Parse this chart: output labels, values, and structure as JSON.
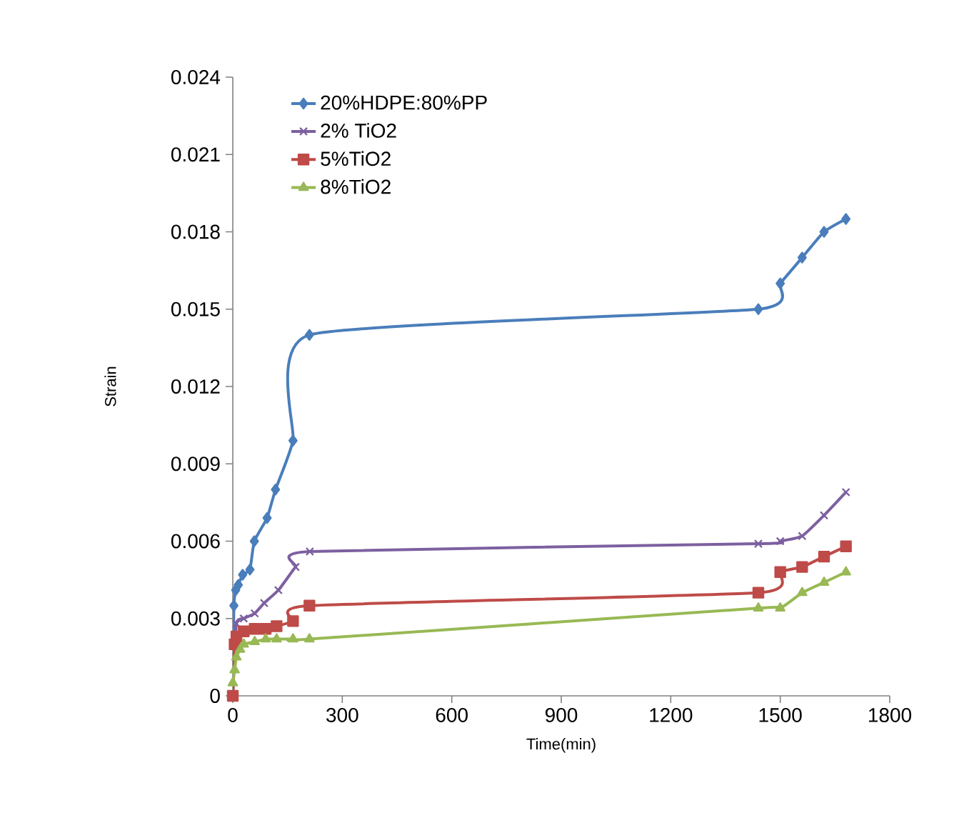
{
  "chart_data": {
    "type": "line",
    "xlabel": "Time(min)",
    "ylabel": "Strain",
    "xlim": [
      0,
      1800
    ],
    "ylim": [
      0,
      0.024
    ],
    "xticks": [
      0,
      300,
      600,
      900,
      1200,
      1500,
      1800
    ],
    "yticks": [
      0,
      0.003,
      0.006,
      0.009,
      0.012,
      0.015,
      0.018,
      0.021,
      0.024
    ],
    "grid": false,
    "legend": "top left",
    "series": [
      {
        "name": "20%HDPE:80%PP",
        "color": "#4a7ebb",
        "marker": "diamond",
        "x": [
          0,
          3,
          8,
          15,
          27,
          47,
          59,
          94,
          117,
          165,
          210,
          1440,
          1500,
          1560,
          1620,
          1680
        ],
        "values": [
          0,
          0.0035,
          0.0041,
          0.0043,
          0.0047,
          0.0049,
          0.006,
          0.0069,
          0.008,
          0.0099,
          0.014,
          0.015,
          0.016,
          0.017,
          0.018,
          0.0185
        ]
      },
      {
        "name": "2% TiO2",
        "color": "#7d60a0",
        "marker": "cross",
        "x": [
          0,
          5,
          10,
          30,
          60,
          86,
          125,
          172,
          211,
          1440,
          1500,
          1560,
          1620,
          1680
        ],
        "values": [
          0,
          null,
          0.0028,
          0.003,
          0.0032,
          0.0036,
          0.0041,
          0.005,
          0.0056,
          0.0059,
          0.006,
          0.0062,
          0.007,
          0.0079
        ]
      },
      {
        "name": "5%TiO2",
        "color": "#be4b48",
        "marker": "square",
        "x": [
          0,
          5,
          10,
          30,
          60,
          90,
          120,
          165,
          210,
          1440,
          1500,
          1560,
          1620,
          1680
        ],
        "values": [
          0,
          0.002,
          0.0023,
          0.0025,
          0.0026,
          0.0026,
          0.0027,
          0.0029,
          0.0035,
          0.004,
          0.0048,
          0.005,
          0.0054,
          0.0058
        ]
      },
      {
        "name": "8%TiO2",
        "color": "#98b954",
        "marker": "triangle",
        "x": [
          0,
          5,
          10,
          20,
          30,
          60,
          90,
          120,
          165,
          210,
          1440,
          1500,
          1560,
          1620,
          1680
        ],
        "values": [
          0.0005,
          0.001,
          0.0015,
          0.0018,
          0.002,
          0.0021,
          0.0022,
          0.0022,
          0.0022,
          0.0022,
          0.0034,
          0.0034,
          0.004,
          0.0044,
          0.0048
        ]
      }
    ]
  }
}
